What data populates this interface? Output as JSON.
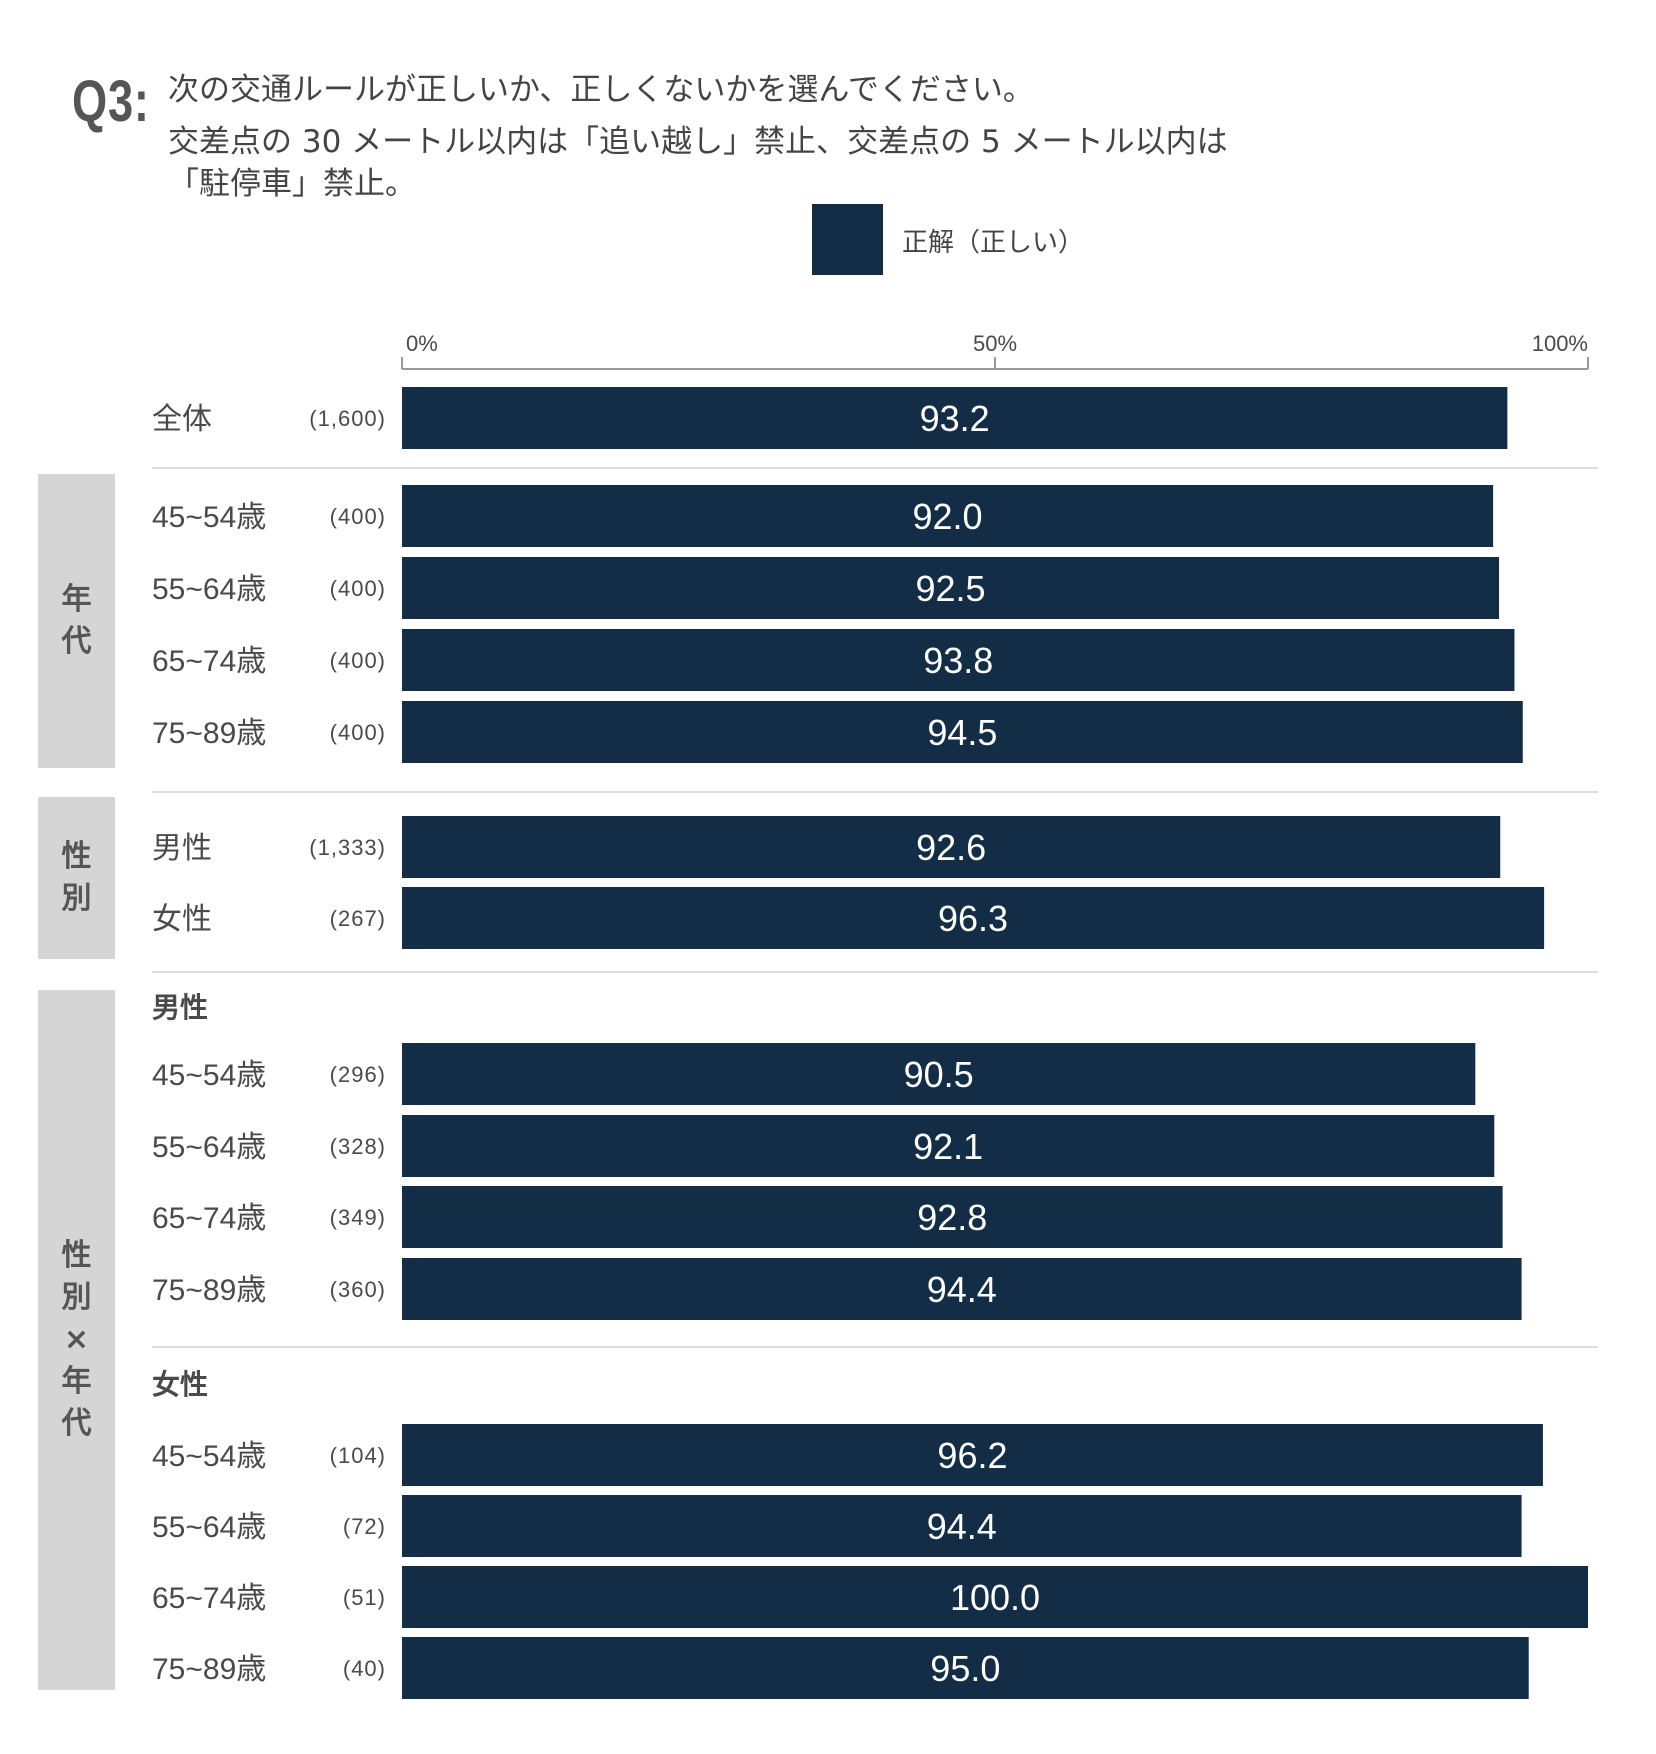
{
  "question": {
    "label": "Q3:",
    "lines": [
      "次の交通ルールが正しいか、正しくないかを選んでください。",
      "交差点の 30 メートル以内は「追い越し」禁止、交差点の 5 メートル以内は",
      "「駐停車」禁止。"
    ]
  },
  "legend": {
    "label": "正解（正しい）",
    "color": "#132d46"
  },
  "groups": [
    {
      "label": "年代"
    },
    {
      "label": "性別"
    },
    {
      "label": "性別×年代"
    }
  ],
  "chart_data": {
    "type": "bar",
    "orientation": "horizontal",
    "xlim": [
      0,
      100
    ],
    "x_ticks": [
      "0%",
      "50%",
      "100%"
    ],
    "series": [
      {
        "name": "正解（正しい）",
        "color": "#132d46"
      }
    ],
    "rows": [
      {
        "label": "全体",
        "n": "(1,600)",
        "value": 93.2,
        "value_label": "93.2"
      },
      {
        "label": "45~54歳",
        "n": "(400)",
        "value": 92.0,
        "value_label": "92.0"
      },
      {
        "label": "55~64歳",
        "n": "(400)",
        "value": 92.5,
        "value_label": "92.5"
      },
      {
        "label": "65~74歳",
        "n": "(400)",
        "value": 93.8,
        "value_label": "93.8"
      },
      {
        "label": "75~89歳",
        "n": "(400)",
        "value": 94.5,
        "value_label": "94.5"
      },
      {
        "label": "男性",
        "n": "(1,333)",
        "value": 92.6,
        "value_label": "92.6"
      },
      {
        "label": "女性",
        "n": "(267)",
        "value": 96.3,
        "value_label": "96.3"
      },
      {
        "subheader": "男性"
      },
      {
        "label": "45~54歳",
        "n": "(296)",
        "value": 90.5,
        "value_label": "90.5"
      },
      {
        "label": "55~64歳",
        "n": "(328)",
        "value": 92.1,
        "value_label": "92.1"
      },
      {
        "label": "65~74歳",
        "n": "(349)",
        "value": 92.8,
        "value_label": "92.8"
      },
      {
        "label": "75~89歳",
        "n": "(360)",
        "value": 94.4,
        "value_label": "94.4"
      },
      {
        "subheader": "女性"
      },
      {
        "label": "45~54歳",
        "n": "(104)",
        "value": 96.2,
        "value_label": "96.2"
      },
      {
        "label": "55~64歳",
        "n": "(72)",
        "value": 94.4,
        "value_label": "94.4"
      },
      {
        "label": "65~74歳",
        "n": "(51)",
        "value": 100.0,
        "value_label": "100.0"
      },
      {
        "label": "75~89歳",
        "n": "(40)",
        "value": 95.0,
        "value_label": "95.0"
      }
    ]
  }
}
